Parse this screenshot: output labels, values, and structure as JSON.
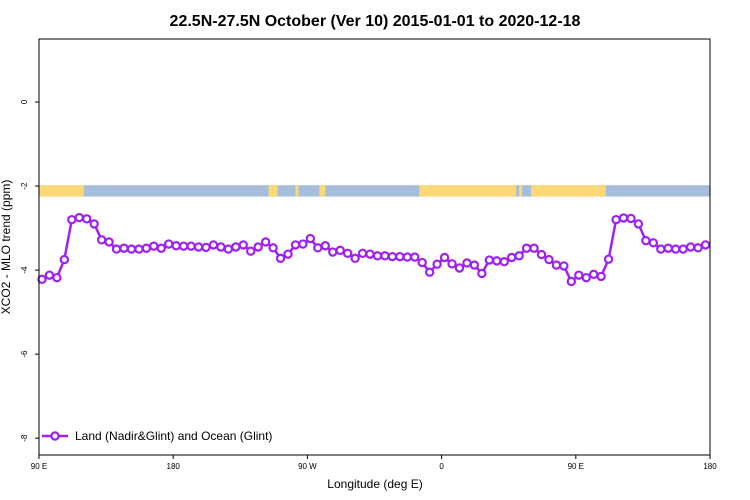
{
  "chart_data": {
    "type": "line",
    "title": "22.5N-27.5N October (Ver 10)   2015-01-01 to 2020-12-18",
    "xlabel": "Longitude (deg E)",
    "ylabel": "XCO2 - MLO trend (ppm)",
    "xlim": [
      90,
      540
    ],
    "ylim": [
      -8.4,
      1.5
    ],
    "x_ticks": [
      {
        "value": 90,
        "label": "90 E"
      },
      {
        "value": 180,
        "label": "180"
      },
      {
        "value": 270,
        "label": "90 W"
      },
      {
        "value": 360,
        "label": "0"
      },
      {
        "value": 450,
        "label": "90 E"
      },
      {
        "value": 540,
        "label": "180"
      }
    ],
    "y_ticks": [
      {
        "value": 0,
        "label": "0"
      },
      {
        "value": -2,
        "label": "-2"
      },
      {
        "value": -4,
        "label": "-4"
      },
      {
        "value": -6,
        "label": "-6"
      },
      {
        "value": -8,
        "label": "-8"
      }
    ],
    "land_ocean_strip": {
      "y_top": -1.98,
      "y_bottom": -2.25,
      "ocean_color": "#a6bddb",
      "land_color": "#fdd976",
      "land_segments": [
        [
          90,
          120
        ],
        [
          244,
          250
        ],
        [
          262,
          264
        ],
        [
          278,
          282
        ],
        [
          345,
          410
        ],
        [
          412,
          414
        ],
        [
          420,
          470
        ]
      ]
    },
    "series": [
      {
        "name": "Land (Nadir&Glint) and Ocean (Glint)",
        "color": "#a020f0",
        "x": [
          92,
          97,
          102,
          107,
          112,
          117,
          122,
          127,
          132,
          137,
          142,
          147,
          152,
          157,
          162,
          167,
          172,
          177,
          182,
          187,
          192,
          197,
          202,
          207,
          212,
          217,
          222,
          227,
          232,
          237,
          242,
          247,
          252,
          257,
          262,
          267,
          272,
          277,
          282,
          287,
          292,
          297,
          302,
          307,
          312,
          317,
          322,
          327,
          332,
          337,
          342,
          347,
          352,
          357,
          362,
          367,
          372,
          377,
          382,
          387,
          392,
          397,
          402,
          407,
          412,
          417,
          422,
          427,
          432,
          437,
          442,
          447,
          452,
          457,
          462,
          467,
          472,
          477,
          482,
          487,
          492,
          497,
          502,
          507,
          512,
          517,
          522,
          527,
          532,
          537
        ],
        "y": [
          -4.22,
          -4.12,
          -4.18,
          -3.75,
          -2.8,
          -2.75,
          -2.78,
          -2.9,
          -3.28,
          -3.33,
          -3.5,
          -3.48,
          -3.5,
          -3.5,
          -3.48,
          -3.43,
          -3.48,
          -3.38,
          -3.42,
          -3.43,
          -3.43,
          -3.45,
          -3.46,
          -3.4,
          -3.45,
          -3.5,
          -3.45,
          -3.4,
          -3.55,
          -3.45,
          -3.33,
          -3.47,
          -3.72,
          -3.62,
          -3.4,
          -3.38,
          -3.25,
          -3.47,
          -3.42,
          -3.57,
          -3.53,
          -3.6,
          -3.72,
          -3.6,
          -3.62,
          -3.66,
          -3.66,
          -3.68,
          -3.68,
          -3.69,
          -3.69,
          -3.82,
          -4.05,
          -3.86,
          -3.7,
          -3.85,
          -3.95,
          -3.83,
          -3.88,
          -4.08,
          -3.76,
          -3.78,
          -3.8,
          -3.7,
          -3.66,
          -3.48,
          -3.48,
          -3.63,
          -3.75,
          -3.88,
          -3.9,
          -4.27,
          -4.12,
          -4.18,
          -4.1,
          -4.15,
          -3.74,
          -2.8,
          -2.76,
          -2.77,
          -2.9,
          -3.3,
          -3.35,
          -3.5,
          -3.48,
          -3.5,
          -3.5,
          -3.45,
          -3.47,
          -3.4
        ]
      }
    ],
    "legend": {
      "position": "bottom-left"
    },
    "grid": false
  }
}
